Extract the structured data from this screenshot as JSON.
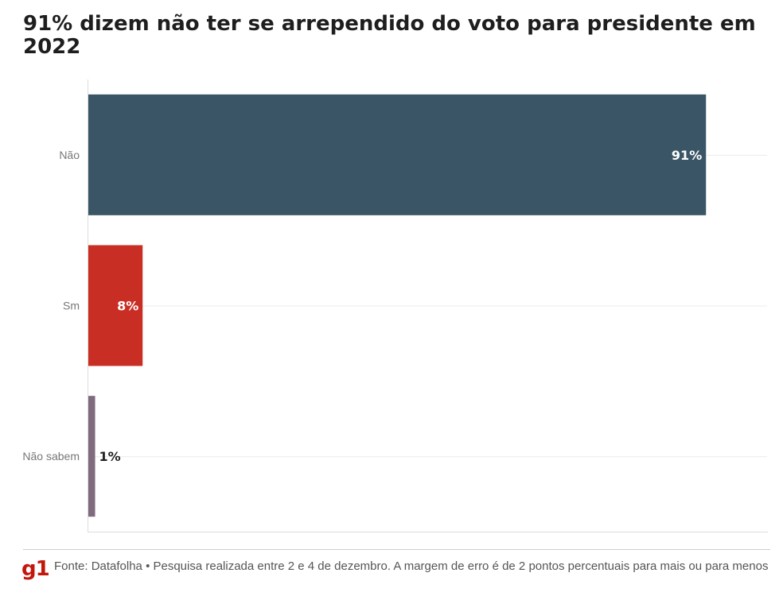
{
  "chart_data": {
    "type": "bar",
    "orientation": "horizontal",
    "title": "91% dizem não ter se arrependido do voto para presidente em 2022",
    "categories": [
      "Não",
      "Sm",
      "Não sabem"
    ],
    "values": [
      91,
      8,
      1
    ],
    "value_labels": [
      "91%",
      "8%",
      "1%"
    ],
    "colors": [
      "#3a5666",
      "#c92e25",
      "#7f6a7e"
    ],
    "xlim": [
      0,
      100
    ],
    "xlabel": "",
    "ylabel": "",
    "grid": true,
    "legend": "none"
  },
  "footer": {
    "logo": "g1",
    "source": "Fonte: Datafolha • Pesquisa realizada entre 2 e 4 de dezembro. A margem de erro é de 2 pontos percentuais para mais ou para menos"
  }
}
